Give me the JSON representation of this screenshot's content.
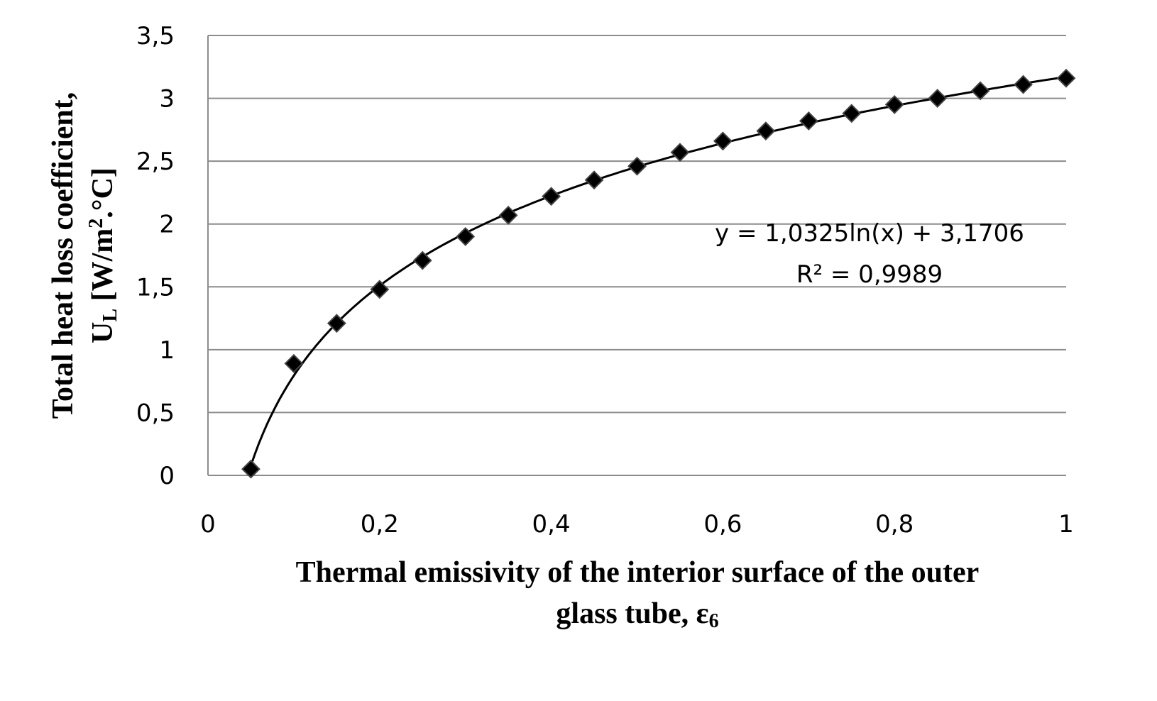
{
  "chart_data": {
    "type": "scatter",
    "xlabel_lines": [
      "Thermal emissivity of the interior surface of the outer",
      "glass tube, ε"
    ],
    "xlabel_subscript": "6",
    "ylabel_lines": [
      "Total heat loss coefficient,",
      "U"
    ],
    "ylabel_subscript": "L",
    "ylabel_unit": " [W/m",
    "ylabel_sup": "2",
    "ylabel_unit_end": ".°C]",
    "xlim": [
      0,
      1
    ],
    "ylim": [
      0,
      3.5
    ],
    "x_ticks": [
      0,
      0.2,
      0.4,
      0.6,
      0.8,
      1
    ],
    "x_tick_labels": [
      "0",
      "0,2",
      "0,4",
      "0,6",
      "0,8",
      "1"
    ],
    "y_ticks": [
      0,
      0.5,
      1,
      1.5,
      2,
      2.5,
      3,
      3.5
    ],
    "y_tick_labels": [
      "0",
      "0,5",
      "1",
      "1,5",
      "2",
      "2,5",
      "3",
      "3,5"
    ],
    "grid": "horizontal",
    "marker": "diamond",
    "marker_color": "#000000",
    "gridline_color": "#8c8c8c",
    "x": [
      0.05,
      0.1,
      0.15,
      0.2,
      0.25,
      0.3,
      0.35,
      0.4,
      0.45,
      0.5,
      0.55,
      0.6,
      0.65,
      0.7,
      0.75,
      0.8,
      0.85,
      0.9,
      0.95,
      1.0
    ],
    "y": [
      0.05,
      0.89,
      1.21,
      1.48,
      1.71,
      1.9,
      2.07,
      2.22,
      2.35,
      2.46,
      2.57,
      2.66,
      2.74,
      2.82,
      2.88,
      2.95,
      3.0,
      3.06,
      3.11,
      3.16
    ],
    "trendline": {
      "type": "logarithmic",
      "a": 1.0325,
      "b": 3.1706,
      "equation_label": "y = 1,0325ln(x) + 3,1706",
      "r2_label": "R² = 0,9989"
    }
  }
}
